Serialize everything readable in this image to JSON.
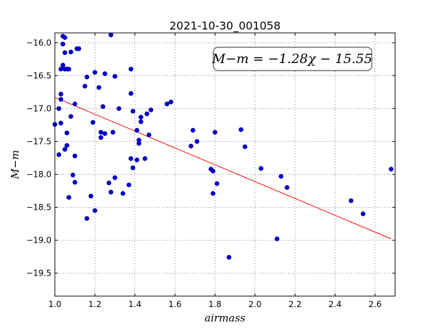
{
  "chart_data": {
    "type": "scatter",
    "title": "2021-10-30_001058",
    "xlabel": "airmass",
    "ylabel": "M−m",
    "annotation": "M−m = −1.28χ − 15.55",
    "xlim": [
      1.0,
      2.7
    ],
    "ylim": [
      -19.85,
      -15.85
    ],
    "grid": true,
    "x_ticks": [
      1.0,
      1.2,
      1.4,
      1.6,
      1.8,
      2.0,
      2.2,
      2.4,
      2.6
    ],
    "x_tick_labels": [
      "1.0",
      "1.2",
      "1.4",
      "1.6",
      "1.8",
      "2.0",
      "2.2",
      "2.4",
      "2.6"
    ],
    "y_ticks": [
      -16.0,
      -16.5,
      -17.0,
      -17.5,
      -18.0,
      -18.5,
      -19.0,
      -19.5
    ],
    "y_tick_labels": [
      "−16.0",
      "−16.5",
      "−17.0",
      "−17.5",
      "−18.0",
      "−18.5",
      "−19.0",
      "−19.5"
    ],
    "point_color": "#0000cc",
    "line_color": "#ff0000",
    "fit": {
      "slope": -1.28,
      "intercept": -15.55,
      "x_range": [
        1.0,
        2.68
      ]
    },
    "points": [
      [
        1.04,
        -15.9
      ],
      [
        1.05,
        -15.92
      ],
      [
        1.28,
        -15.88
      ],
      [
        1.04,
        -16.02
      ],
      [
        1.11,
        -16.09
      ],
      [
        1.12,
        -16.09
      ],
      [
        1.05,
        -16.15
      ],
      [
        1.08,
        -16.14
      ],
      [
        1.04,
        -16.34
      ],
      [
        1.03,
        -16.4
      ],
      [
        1.05,
        -16.4
      ],
      [
        1.06,
        -16.4
      ],
      [
        1.07,
        -16.4
      ],
      [
        1.2,
        -16.45
      ],
      [
        1.25,
        -16.47
      ],
      [
        1.16,
        -16.52
      ],
      [
        1.3,
        -16.51
      ],
      [
        1.38,
        -16.4
      ],
      [
        1.15,
        -16.66
      ],
      [
        1.22,
        -16.68
      ],
      [
        1.03,
        -16.78
      ],
      [
        1.03,
        -16.86
      ],
      [
        1.38,
        -16.77
      ],
      [
        1.1,
        -16.93
      ],
      [
        1.02,
        -17.0
      ],
      [
        1.24,
        -16.97
      ],
      [
        1.32,
        -17.0
      ],
      [
        1.39,
        -17.04
      ],
      [
        1.58,
        -16.9
      ],
      [
        1.56,
        -16.93
      ],
      [
        1.48,
        -17.02
      ],
      [
        1.46,
        -17.08
      ],
      [
        1.08,
        -17.12
      ],
      [
        1.43,
        -17.13
      ],
      [
        1.43,
        -17.2
      ],
      [
        1.0,
        -17.24
      ],
      [
        1.03,
        -17.22
      ],
      [
        1.19,
        -17.21
      ],
      [
        1.06,
        -17.37
      ],
      [
        1.23,
        -17.36
      ],
      [
        1.25,
        -17.38
      ],
      [
        1.23,
        -17.44
      ],
      [
        1.29,
        -17.36
      ],
      [
        1.41,
        -17.33
      ],
      [
        1.47,
        -17.4
      ],
      [
        1.42,
        -17.48
      ],
      [
        1.42,
        -17.53
      ],
      [
        1.05,
        -17.62
      ],
      [
        1.06,
        -17.56
      ],
      [
        1.02,
        -17.7
      ],
      [
        1.1,
        -17.72
      ],
      [
        1.69,
        -17.33
      ],
      [
        1.68,
        -17.57
      ],
      [
        1.71,
        -17.5
      ],
      [
        1.8,
        -17.36
      ],
      [
        1.93,
        -17.32
      ],
      [
        1.95,
        -17.58
      ],
      [
        1.38,
        -17.76
      ],
      [
        1.41,
        -17.78
      ],
      [
        1.45,
        -17.76
      ],
      [
        1.39,
        -17.9
      ],
      [
        1.78,
        -17.92
      ],
      [
        1.79,
        -17.95
      ],
      [
        2.03,
        -17.91
      ],
      [
        2.68,
        -17.92
      ],
      [
        1.09,
        -18.01
      ],
      [
        1.1,
        -18.12
      ],
      [
        1.3,
        -18.05
      ],
      [
        1.27,
        -18.13
      ],
      [
        1.37,
        -18.16
      ],
      [
        1.81,
        -18.14
      ],
      [
        2.13,
        -18.03
      ],
      [
        2.16,
        -18.2
      ],
      [
        1.28,
        -18.27
      ],
      [
        1.34,
        -18.29
      ],
      [
        1.79,
        -18.29
      ],
      [
        1.07,
        -18.35
      ],
      [
        1.18,
        -18.33
      ],
      [
        1.2,
        -18.55
      ],
      [
        1.16,
        -18.67
      ],
      [
        2.48,
        -18.4
      ],
      [
        2.54,
        -18.6
      ],
      [
        2.11,
        -18.98
      ],
      [
        1.87,
        -19.26
      ]
    ]
  }
}
